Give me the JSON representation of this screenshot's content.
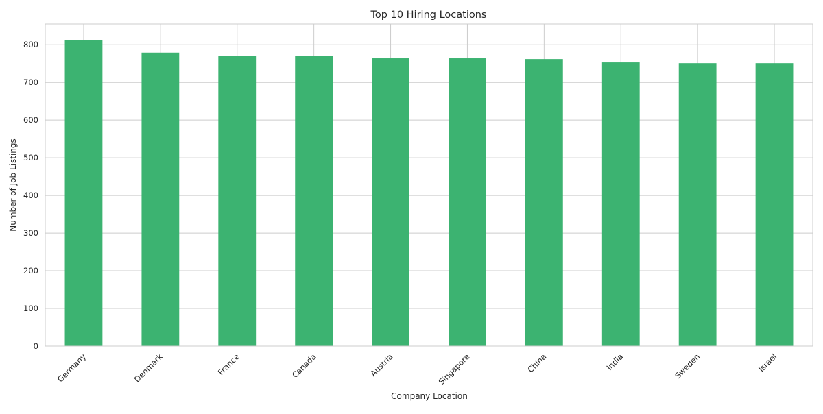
{
  "chart_data": {
    "type": "bar",
    "title": "Top 10 Hiring Locations",
    "xlabel": "Company Location",
    "ylabel": "Number of Job Listings",
    "categories": [
      "Germany",
      "Denmark",
      "France",
      "Canada",
      "Austria",
      "Singapore",
      "China",
      "India",
      "Sweden",
      "Israel"
    ],
    "values": [
      813,
      779,
      770,
      770,
      764,
      764,
      762,
      753,
      751,
      751
    ],
    "ylim": [
      0,
      855
    ],
    "yticks": [
      0,
      100,
      200,
      300,
      400,
      500,
      600,
      700,
      800
    ],
    "bar_color": "#3cb371",
    "grid": true,
    "legend": "none"
  }
}
